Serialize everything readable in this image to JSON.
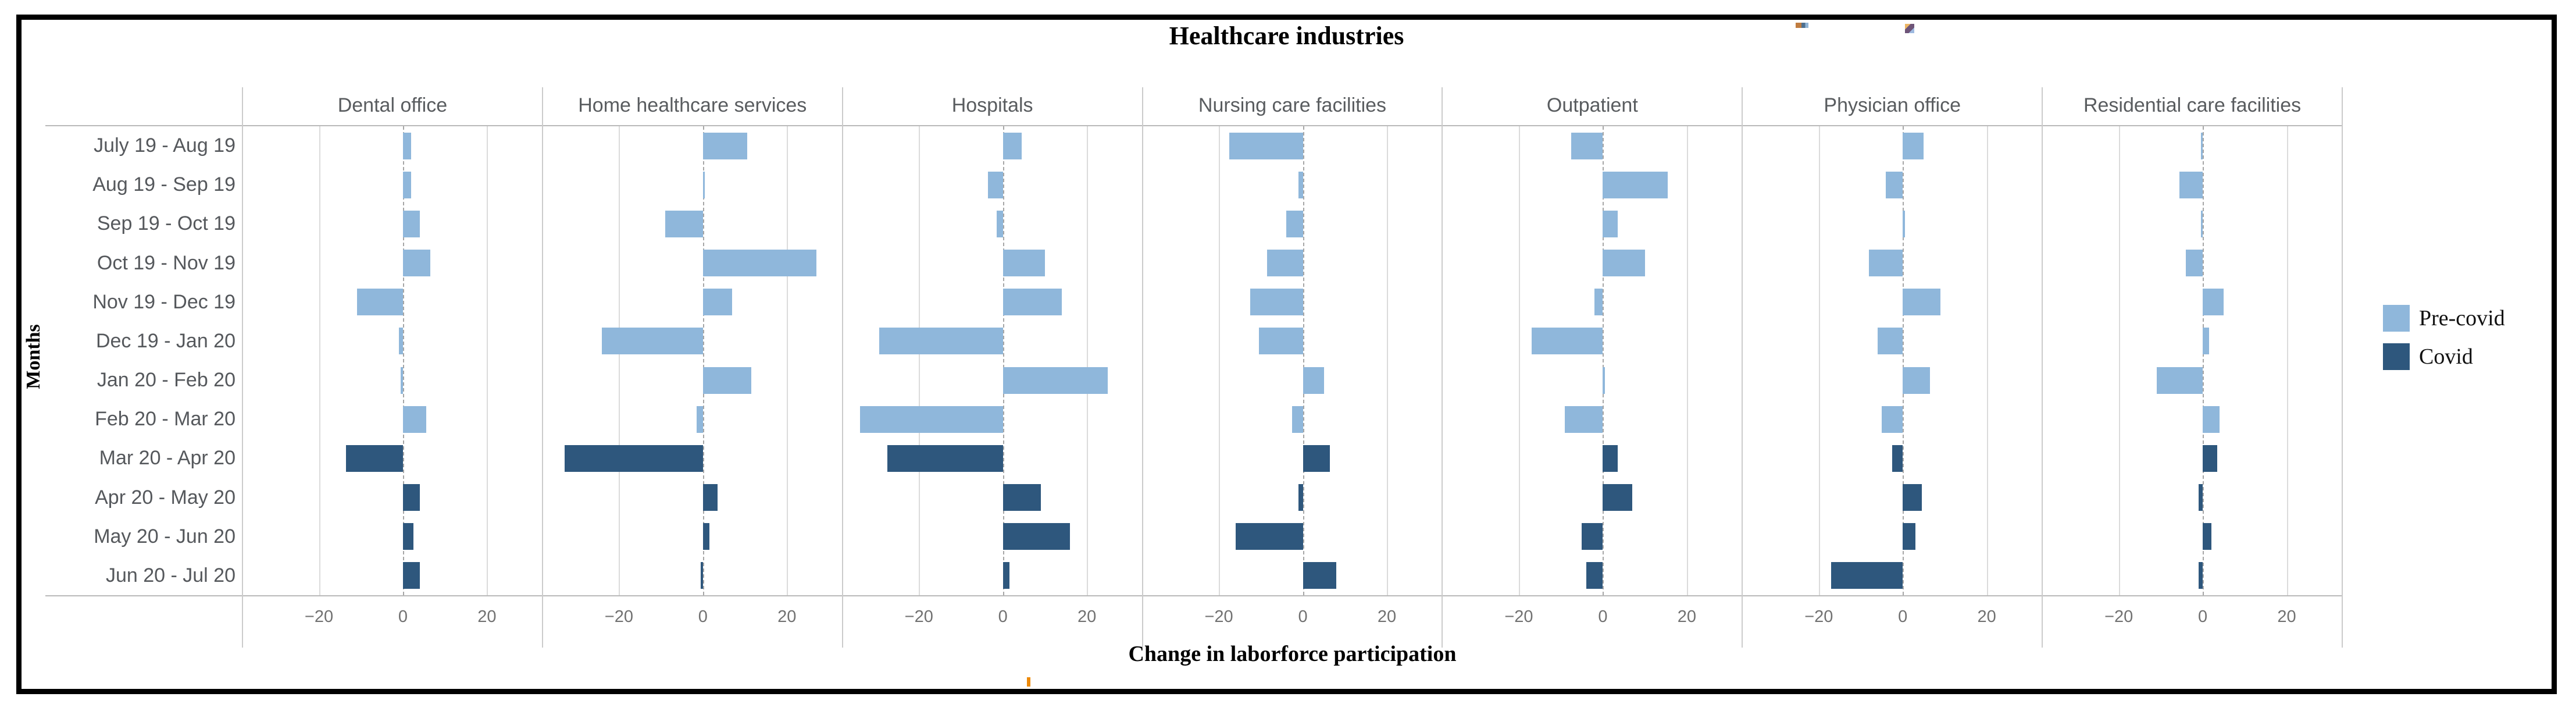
{
  "title": "Healthcare industries",
  "x_axis_label": "Change in laborforce participation",
  "y_axis_label": "Months",
  "legend": {
    "items": [
      {
        "label": "Pre-covid",
        "color": "#8FB7DB"
      },
      {
        "label": "Covid",
        "color": "#2E577D"
      }
    ]
  },
  "chart_data": {
    "type": "bar",
    "orientation": "horizontal",
    "title": "Healthcare industries",
    "xlabel": "Change in laborforce participation",
    "ylabel": "Months",
    "legend_position": "right",
    "grid": "vertical gridlines at x ticks, dashed zero line, no horizontal gridlines",
    "x_ticks": [
      -20,
      0,
      20
    ],
    "x_tick_labels": [
      "−20",
      "0",
      "20"
    ],
    "xlim": [
      -38.2,
      33.2
    ],
    "categories": [
      "July 19 - Aug 19",
      "Aug 19 - Sep 19",
      "Sep 19 - Oct 19",
      "Oct 19 - Nov 19",
      "Nov 19 - Dec 19",
      "Dec 19 - Jan 20",
      "Jan 20 - Feb 20",
      "Feb 20 - Mar 20",
      "Mar 20 - Apr 20",
      "Apr 20 - May 20",
      "May 20 - Jun 20",
      "Jun 20 - Jul 20"
    ],
    "covid_start_index": 8,
    "series_colors": {
      "Pre-covid": "#8FB7DB",
      "Covid": "#2E577D"
    },
    "facets": [
      {
        "name": "Dental office",
        "values": [
          2,
          2,
          4,
          6.5,
          -11,
          -1,
          -0.5,
          5.5,
          -13.5,
          4,
          2.5,
          4
        ]
      },
      {
        "name": "Home healthcare services",
        "values": [
          10.5,
          0.5,
          -9,
          27,
          7,
          -24,
          11.5,
          -1.5,
          -33,
          3.5,
          1.5,
          -0.5
        ]
      },
      {
        "name": "Hospitals",
        "values": [
          4.5,
          -3.5,
          -1.5,
          10,
          14,
          -29.5,
          25,
          -34,
          -27.5,
          9,
          16,
          1.5
        ]
      },
      {
        "name": "Nursing care facilities",
        "values": [
          -17.5,
          -1,
          -4,
          -8.5,
          -12.5,
          -10.5,
          5,
          -2.5,
          6.5,
          -1,
          -16,
          8
        ]
      },
      {
        "name": "Outpatient",
        "values": [
          -7.5,
          15.5,
          3.5,
          10,
          -2,
          -17,
          0.5,
          -9,
          3.5,
          7,
          -5,
          -4
        ]
      },
      {
        "name": "Physician office",
        "values": [
          5,
          -4,
          0.5,
          -8,
          9,
          -6,
          6.5,
          -5,
          -2.5,
          4.5,
          3,
          -17
        ]
      },
      {
        "name": "Residential care facilities",
        "values": [
          -0.5,
          -5.5,
          -0.5,
          -4,
          5,
          1.5,
          -11,
          4,
          3.5,
          -1,
          2,
          -1
        ]
      }
    ]
  }
}
